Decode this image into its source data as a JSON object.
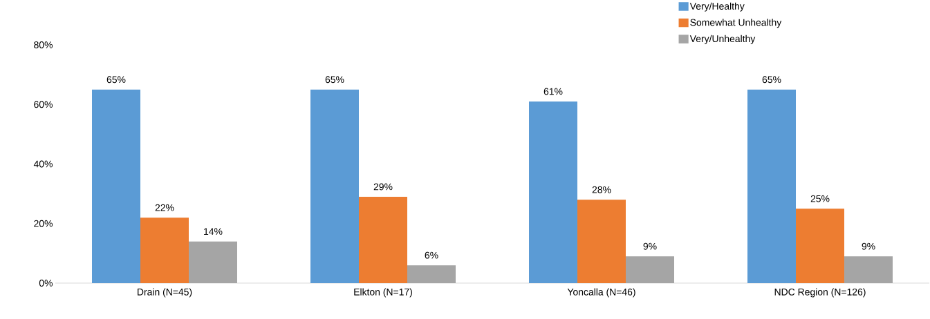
{
  "chart_data": {
    "type": "bar",
    "categories": [
      "Drain (N=45)",
      "Elkton (N=17)",
      "Yoncalla (N=46)",
      "NDC Region (N=126)"
    ],
    "series": [
      {
        "name": "Very/Healthy",
        "color": "#5b9bd5",
        "values": [
          65,
          65,
          61,
          65
        ],
        "value_labels": [
          "65%",
          "65%",
          "61%",
          "65%"
        ]
      },
      {
        "name": "Somewhat Unhealthy",
        "color": "#ed7d31",
        "values": [
          22,
          29,
          28,
          25
        ],
        "value_labels": [
          "22%",
          "29%",
          "28%",
          "25%"
        ]
      },
      {
        "name": "Very/Unhealthy",
        "color": "#a5a5a5",
        "values": [
          14,
          6,
          9,
          9
        ],
        "value_labels": [
          "14%",
          "6%",
          "9%",
          "9%"
        ]
      }
    ],
    "ylim": [
      0,
      80
    ],
    "yticks": [
      {
        "value": 0,
        "label": "0%"
      },
      {
        "value": 20,
        "label": "20%"
      },
      {
        "value": 40,
        "label": "40%"
      },
      {
        "value": 60,
        "label": "60%"
      },
      {
        "value": 80,
        "label": "80%"
      }
    ],
    "grid": false,
    "legend": "top right"
  }
}
